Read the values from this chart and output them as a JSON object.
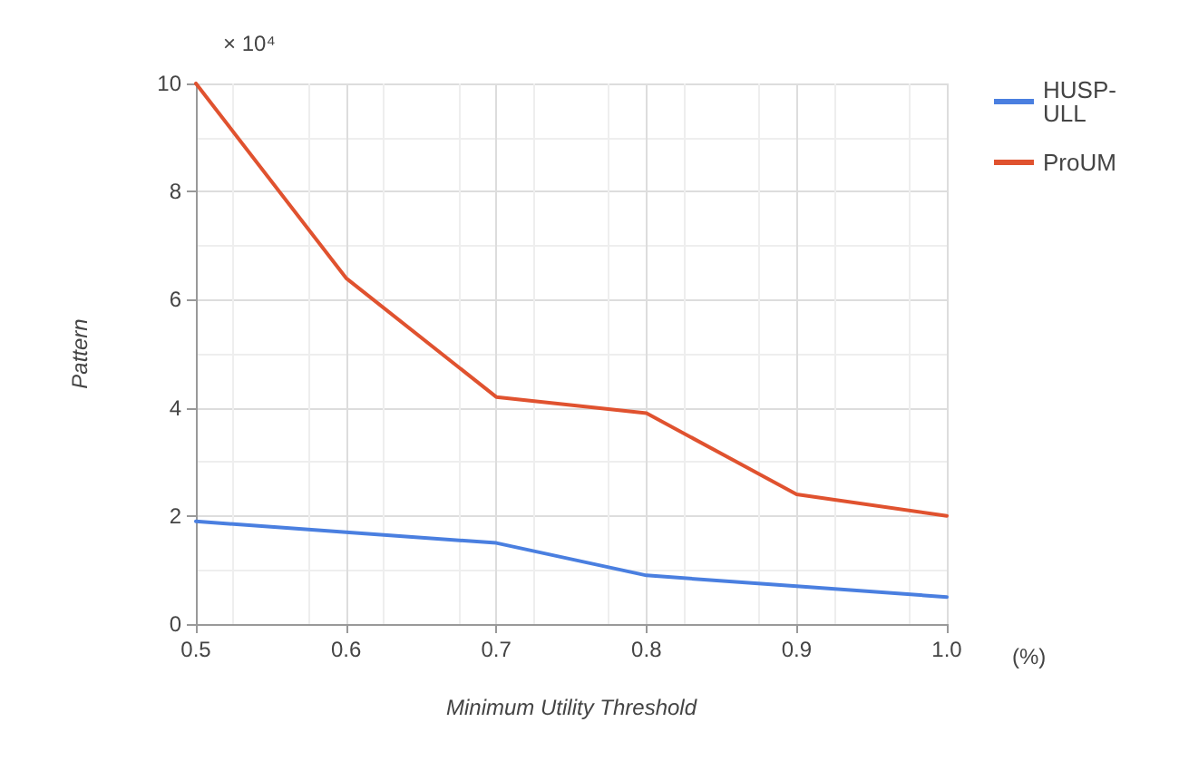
{
  "chart_data": {
    "type": "line",
    "xlabel": "Minimum Utility Threshold",
    "ylabel": "Pattern",
    "x": [
      0.5,
      0.6,
      0.7,
      0.8,
      0.9,
      1.0
    ],
    "series": [
      {
        "name": "HUSP-ULL",
        "color": "#4a7fe0",
        "values": [
          1.9,
          1.7,
          1.5,
          0.9,
          0.7,
          0.5
        ]
      },
      {
        "name": "ProUM",
        "color": "#e0522f",
        "values": [
          10,
          6.4,
          4.2,
          3.9,
          2.4,
          2.0
        ]
      }
    ],
    "xlim": [
      0.5,
      1.0
    ],
    "xticks": [
      0.5,
      0.6,
      0.7,
      0.8,
      0.9,
      {
        "value": 1.0,
        "label": "1.0"
      }
    ],
    "ylim": [
      0,
      10
    ],
    "yticks": [
      0,
      2,
      4,
      6,
      8,
      10
    ],
    "annotations": [
      "× 10⁴",
      "(%)"
    ],
    "grid": true,
    "legend": "top right",
    "marker": "none",
    "line_style": "solid"
  }
}
